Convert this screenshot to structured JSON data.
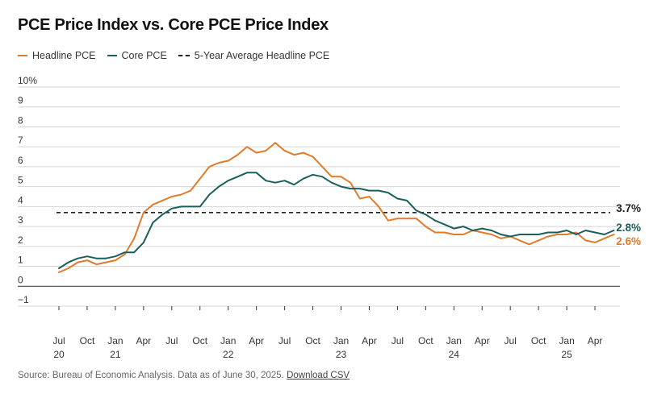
{
  "colors": {
    "headline": "#E07B2A",
    "core": "#1B5E5B",
    "average": "#222222",
    "grid": "#d4d4d4",
    "axis": "#555555"
  },
  "title": "PCE Price Index vs. Core PCE Price Index",
  "legend": {
    "headline": "Headline PCE",
    "core": "Core PCE",
    "average": "5-Year Average Headline PCE"
  },
  "source": {
    "text": "Source: Bureau of Economic Analysis. Data as of June 30, 2025.",
    "link": "Download CSV"
  },
  "chart_data": {
    "type": "line",
    "title": "PCE Price Index vs. Core PCE Price Index",
    "ylabel": "%",
    "ylim": [
      -1,
      10
    ],
    "yticks": [
      "−1",
      "0",
      "1",
      "2",
      "3",
      "4",
      "5",
      "6",
      "7",
      "8",
      "9",
      "10%"
    ],
    "x_start": "2020-07",
    "xticks": [
      {
        "i": 0,
        "month": "Jul",
        "year": "20"
      },
      {
        "i": 3,
        "month": "Oct",
        "year": ""
      },
      {
        "i": 6,
        "month": "Jan",
        "year": "21"
      },
      {
        "i": 9,
        "month": "Apr",
        "year": ""
      },
      {
        "i": 12,
        "month": "Jul",
        "year": ""
      },
      {
        "i": 15,
        "month": "Oct",
        "year": ""
      },
      {
        "i": 18,
        "month": "Jan",
        "year": "22"
      },
      {
        "i": 21,
        "month": "Apr",
        "year": ""
      },
      {
        "i": 24,
        "month": "Jul",
        "year": ""
      },
      {
        "i": 27,
        "month": "Oct",
        "year": ""
      },
      {
        "i": 30,
        "month": "Jan",
        "year": "23"
      },
      {
        "i": 33,
        "month": "Apr",
        "year": ""
      },
      {
        "i": 36,
        "month": "Jul",
        "year": ""
      },
      {
        "i": 39,
        "month": "Oct",
        "year": ""
      },
      {
        "i": 42,
        "month": "Jan",
        "year": "24"
      },
      {
        "i": 45,
        "month": "Apr",
        "year": ""
      },
      {
        "i": 48,
        "month": "Jul",
        "year": ""
      },
      {
        "i": 51,
        "month": "Oct",
        "year": ""
      },
      {
        "i": 54,
        "month": "Jan",
        "year": "25"
      },
      {
        "i": 57,
        "month": "Apr",
        "year": ""
      }
    ],
    "series": [
      {
        "name": "Headline PCE",
        "end_label": "2.6%",
        "values": [
          0.7,
          0.9,
          1.2,
          1.3,
          1.1,
          1.2,
          1.3,
          1.6,
          2.4,
          3.7,
          4.1,
          4.3,
          4.5,
          4.6,
          4.8,
          5.4,
          6.0,
          6.2,
          6.3,
          6.6,
          7.0,
          6.7,
          6.8,
          7.2,
          6.8,
          6.6,
          6.7,
          6.5,
          6.0,
          5.5,
          5.5,
          5.2,
          4.4,
          4.5,
          4.0,
          3.3,
          3.4,
          3.4,
          3.4,
          3.0,
          2.7,
          2.7,
          2.6,
          2.6,
          2.8,
          2.7,
          2.6,
          2.4,
          2.5,
          2.3,
          2.1,
          2.3,
          2.5,
          2.6,
          2.6,
          2.7,
          2.3,
          2.2,
          2.4,
          2.6
        ]
      },
      {
        "name": "Core PCE",
        "end_label": "2.8%",
        "values": [
          0.9,
          1.2,
          1.4,
          1.5,
          1.4,
          1.4,
          1.5,
          1.7,
          1.7,
          2.2,
          3.2,
          3.6,
          3.9,
          4.0,
          4.0,
          4.0,
          4.6,
          5.0,
          5.3,
          5.5,
          5.7,
          5.7,
          5.3,
          5.2,
          5.3,
          5.1,
          5.4,
          5.6,
          5.5,
          5.2,
          5.0,
          4.9,
          4.9,
          4.8,
          4.8,
          4.7,
          4.4,
          4.3,
          3.8,
          3.6,
          3.3,
          3.1,
          2.9,
          3.0,
          2.8,
          2.9,
          2.8,
          2.6,
          2.5,
          2.6,
          2.6,
          2.6,
          2.7,
          2.7,
          2.8,
          2.6,
          2.8,
          2.7,
          2.6,
          2.8
        ]
      }
    ],
    "reference_line": {
      "name": "5-Year Average Headline PCE",
      "value": 3.7,
      "label": "3.7%"
    }
  }
}
